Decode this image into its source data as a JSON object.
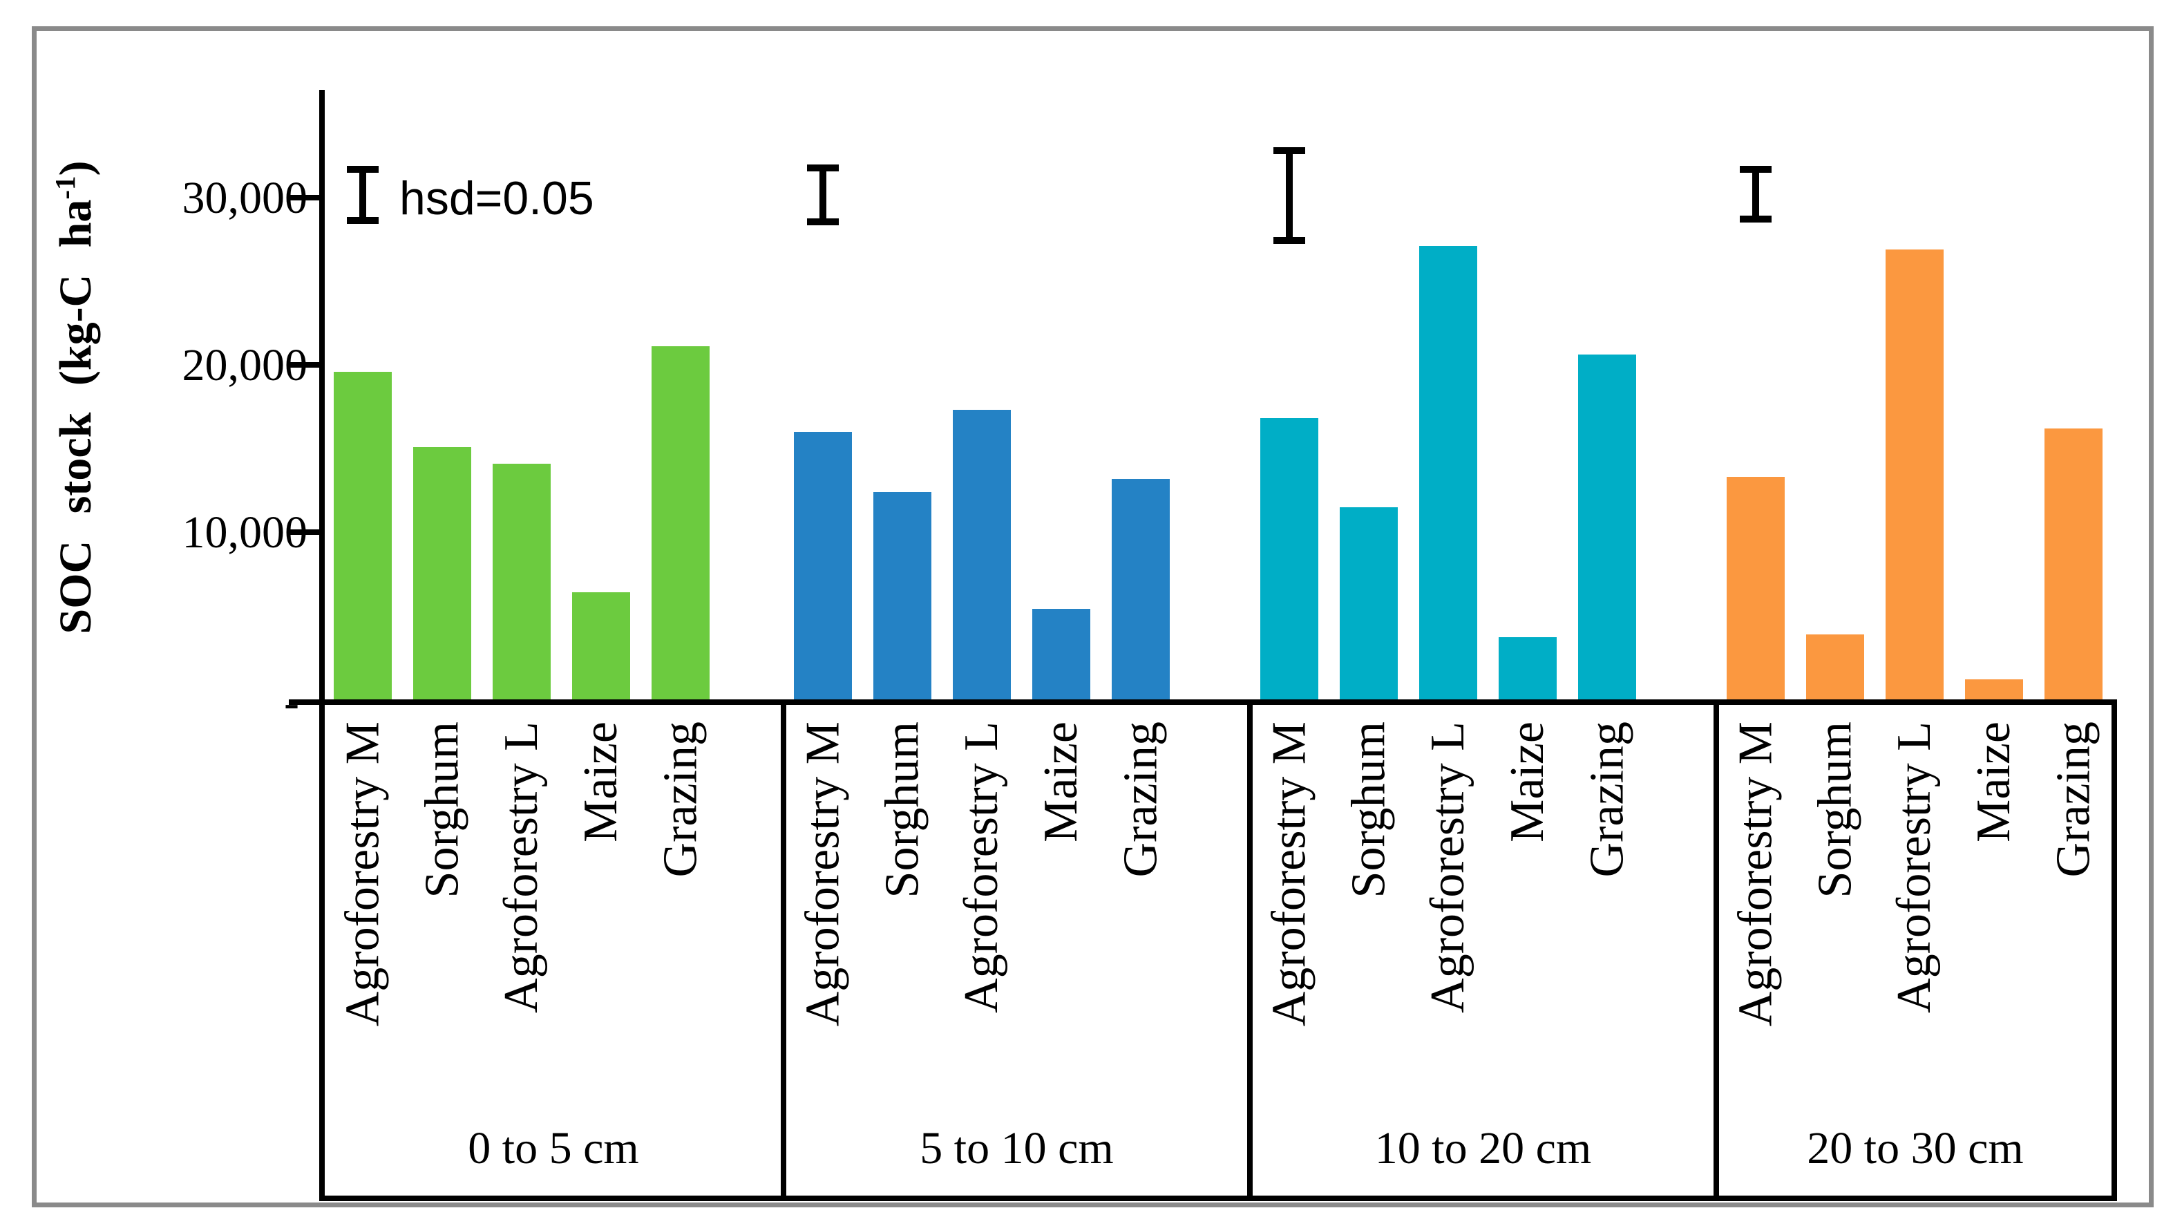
{
  "figure": {
    "border_color": "#8a8a8a",
    "background": "#ffffff"
  },
  "y_axis": {
    "title_main": "SOC stock (kg-C ha",
    "title_sup": "-1",
    "title_end": ")",
    "tick_labels": [
      "30,000",
      "20,000",
      "10,000"
    ],
    "zero_label": "-"
  },
  "annotation": {
    "hsd_label": "hsd=0.05"
  },
  "chart_data": {
    "type": "bar",
    "title": "",
    "ylabel": "SOC stock (kg-C ha-1)",
    "xlabel": "",
    "ylim": [
      0,
      36600
    ],
    "yticks": [
      0,
      10000,
      20000,
      30000
    ],
    "ytick_format": "thousands-comma",
    "grid": false,
    "legend": "none",
    "categories": [
      "Agroforestry M",
      "Sorghum",
      "Agroforestry L",
      "Maize",
      "Grazing"
    ],
    "groups": [
      {
        "label": "0 to 5 cm",
        "color": "#6ccb3f",
        "values": [
          19600,
          15100,
          14100,
          6400,
          21100
        ],
        "error_bar": {
          "top": 31900,
          "bottom": 28450
        }
      },
      {
        "label": "5 to 10 cm",
        "color": "#2482c5",
        "values": [
          16000,
          12400,
          17300,
          5400,
          13200
        ],
        "error_bar": {
          "top": 32000,
          "bottom": 28350
        }
      },
      {
        "label": "10 to 20 cm",
        "color": "#00aec6",
        "values": [
          16800,
          11500,
          27100,
          3700,
          20600
        ],
        "error_bar": {
          "top": 33000,
          "bottom": 27250
        }
      },
      {
        "label": "20 to 30 cm",
        "color": "#fb9840",
        "values": [
          13300,
          3900,
          26900,
          1200,
          16200
        ],
        "error_bar": {
          "top": 31900,
          "bottom": 28500
        }
      }
    ],
    "annotations": [
      {
        "text": "hsd=0.05",
        "group_index": 0,
        "y": 30200
      }
    ]
  }
}
